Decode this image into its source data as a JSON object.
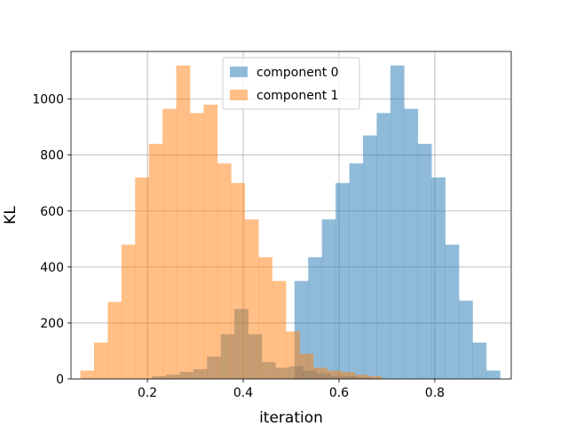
{
  "chart_data": {
    "type": "bar",
    "title": "",
    "xlabel": "iteration",
    "ylabel": "KL",
    "xlim": [
      0.0405,
      0.9595
    ],
    "ylim": [
      0,
      1170
    ],
    "xticks": [
      0.2,
      0.4,
      0.6,
      0.8
    ],
    "xtick_labels": [
      "0.2",
      "0.4",
      "0.6",
      "0.8"
    ],
    "yticks": [
      0,
      200,
      400,
      600,
      800,
      1000
    ],
    "ytick_labels": [
      "0",
      "200",
      "400",
      "600",
      "800",
      "1000"
    ],
    "grid": true,
    "legend_position": "upper center",
    "series": [
      {
        "name": "component 0",
        "color": "#1f77b4",
        "alpha": 0.5,
        "bin_start": 0.21,
        "bin_width": 0.0286,
        "values": [
          10,
          15,
          25,
          35,
          80,
          160,
          250,
          160,
          60,
          40,
          45,
          30,
          20,
          10,
          10,
          5
        ]
      },
      {
        "name": "component 0",
        "color": "#1f77b4",
        "alpha": 0.5,
        "bin_start": 0.5071,
        "bin_width": 0.0286,
        "values": [
          350,
          435,
          570,
          700,
          770,
          870,
          950,
          1120,
          965,
          840,
          720,
          480,
          280,
          130,
          30
        ]
      },
      {
        "name": "component 1",
        "color": "#ff7f0e",
        "alpha": 0.5,
        "bin_start": 0.06,
        "bin_width": 0.0286,
        "values": [
          30,
          130,
          275,
          480,
          720,
          840,
          965,
          1120,
          950,
          980,
          770,
          700,
          570,
          435,
          350,
          170,
          90,
          40,
          30,
          25,
          15,
          10
        ]
      }
    ]
  },
  "legend": {
    "entries": [
      {
        "label": "component 0",
        "color": "#1f77b4"
      },
      {
        "label": "component 1",
        "color": "#ff7f0e"
      }
    ]
  }
}
